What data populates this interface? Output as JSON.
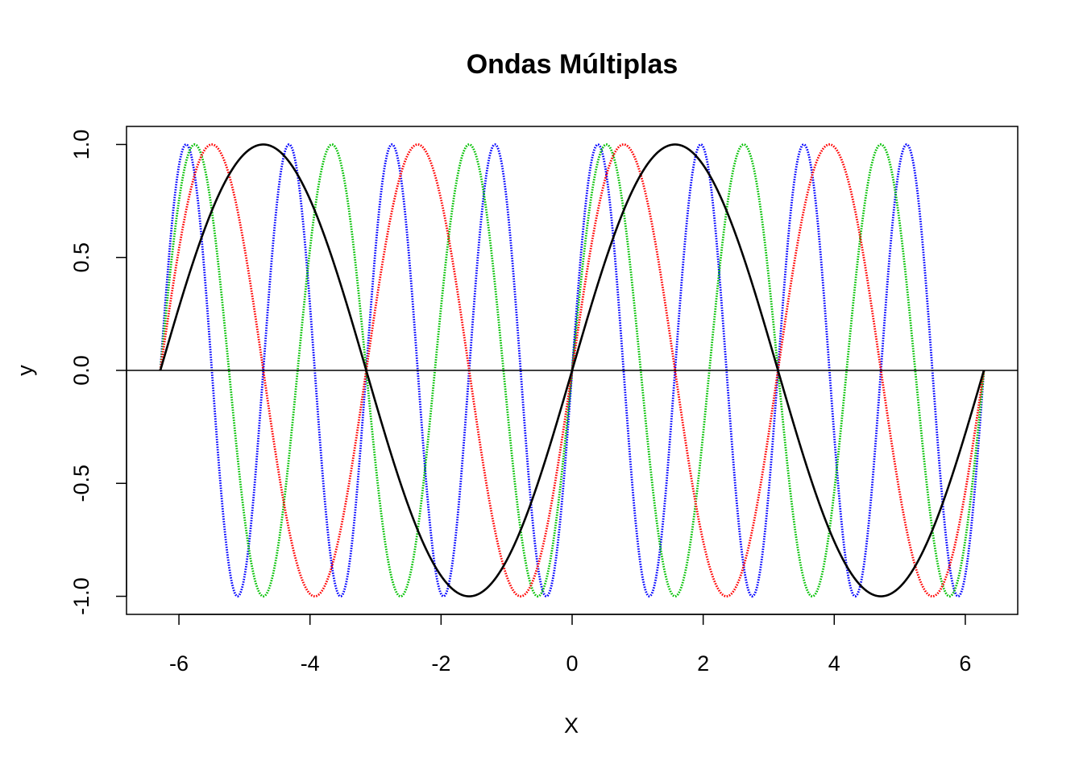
{
  "chart_data": {
    "type": "line",
    "title": "Ondas Múltiplas",
    "xlabel": "X",
    "ylabel": "y",
    "xlim": [
      -6.8,
      6.8
    ],
    "ylim": [
      -1.08,
      1.08
    ],
    "x_range": [
      -6.283,
      6.283
    ],
    "x_ticks": [
      -6,
      -4,
      -2,
      0,
      2,
      4,
      6
    ],
    "y_ticks": [
      -1.0,
      -0.5,
      0.0,
      0.5,
      1.0
    ],
    "x_tick_labels": [
      "-6",
      "-4",
      "-2",
      "0",
      "2",
      "4",
      "6"
    ],
    "y_tick_labels": [
      "-1.0",
      "-0.5",
      "0.0",
      "0.5",
      "1.0"
    ],
    "reference_line": {
      "y": 0,
      "color": "#000000"
    },
    "series": [
      {
        "function": "sin(x)",
        "frequency": 1,
        "color": "#000000",
        "line_style": "solid"
      },
      {
        "function": "sin(2x)",
        "frequency": 2,
        "color": "#ff0000",
        "line_style": "dotted"
      },
      {
        "function": "sin(3x)",
        "frequency": 3,
        "color": "#00c000",
        "line_style": "dotted"
      },
      {
        "function": "sin(4x)",
        "frequency": 4,
        "color": "#0000ff",
        "line_style": "dotted"
      }
    ],
    "grid": false,
    "legend": "none"
  }
}
